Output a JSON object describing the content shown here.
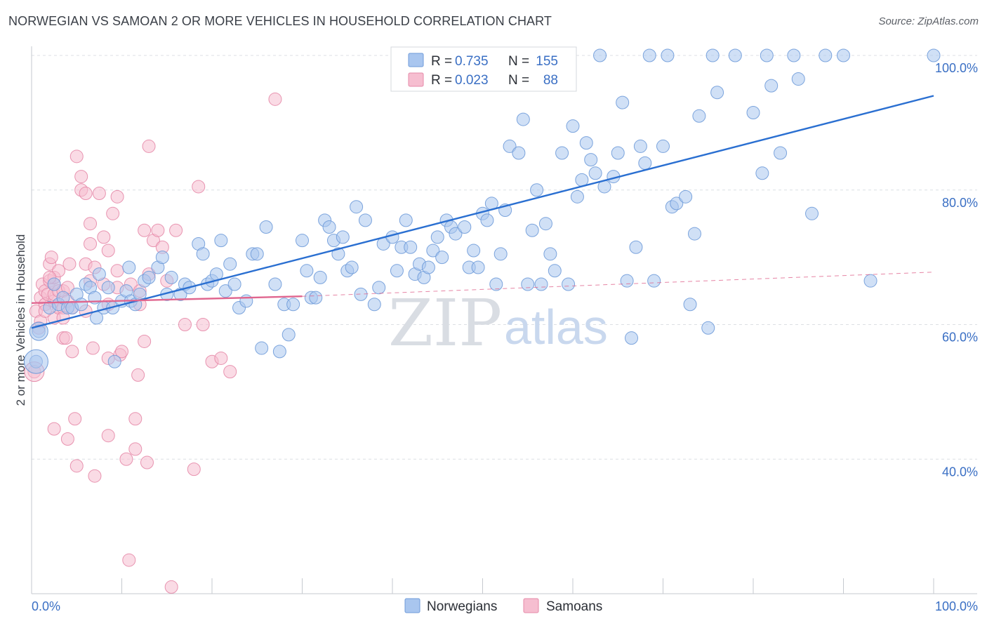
{
  "title": "NORWEGIAN VS SAMOAN 2 OR MORE VEHICLES IN HOUSEHOLD CORRELATION CHART",
  "source": "Source: ZipAtlas.com",
  "watermark": {
    "zip": "ZIP",
    "atlas": "atlas"
  },
  "legend": {
    "r_label": "R =",
    "n_label": "N =",
    "entries": [
      {
        "r": "0.735",
        "n": "155"
      },
      {
        "r": "0.023",
        "n": "88"
      }
    ]
  },
  "colors": {
    "blue_fill": "#a9c6ef",
    "blue_stroke": "#6f9bd9",
    "blue_line": "#2a6fd1",
    "pink_fill": "#f6bed0",
    "pink_stroke": "#e58aa9",
    "pink_line": "#e0668f"
  },
  "chart_data": {
    "type": "scatter",
    "title": "NORWEGIAN VS SAMOAN 2 OR MORE VEHICLES IN HOUSEHOLD CORRELATION CHART",
    "xlabel": "",
    "ylabel": "2 or more Vehicles in Household",
    "xlim": [
      0,
      100
    ],
    "ylim": [
      20,
      100
    ],
    "x_tick_labels": [
      "0.0%",
      "100.0%"
    ],
    "y_ticks": [
      40,
      60,
      80,
      100
    ],
    "y_tick_labels": [
      "40.0%",
      "60.0%",
      "80.0%",
      "100.0%"
    ],
    "grid": true,
    "legend_position": "top-center",
    "series": [
      {
        "name": "Norwegians",
        "r": 0.735,
        "n": 155,
        "trend": [
          [
            0,
            59.5
          ],
          [
            100,
            94.0
          ]
        ],
        "points": [
          [
            0.5,
            54.5
          ],
          [
            0.8,
            59
          ],
          [
            2,
            62.5
          ],
          [
            2.5,
            66
          ],
          [
            3,
            63
          ],
          [
            3.5,
            64
          ],
          [
            4,
            62.5
          ],
          [
            4.5,
            62.5
          ],
          [
            5,
            64.5
          ],
          [
            5.5,
            63
          ],
          [
            6,
            66
          ],
          [
            6.5,
            65.5
          ],
          [
            7,
            64
          ],
          [
            7.2,
            61
          ],
          [
            7.5,
            67.5
          ],
          [
            8,
            62.5
          ],
          [
            8.5,
            65.5
          ],
          [
            9,
            62.5
          ],
          [
            9.2,
            54.5
          ],
          [
            10,
            63.5
          ],
          [
            10.5,
            65
          ],
          [
            10.8,
            68.5
          ],
          [
            11,
            63.5
          ],
          [
            11.5,
            63
          ],
          [
            12,
            64.5
          ],
          [
            12.5,
            66.5
          ],
          [
            13,
            67
          ],
          [
            14,
            68.5
          ],
          [
            14.5,
            70
          ],
          [
            15,
            64.5
          ],
          [
            15.5,
            67
          ],
          [
            16.5,
            64.5
          ],
          [
            17,
            66
          ],
          [
            17.5,
            65.5
          ],
          [
            18.5,
            72
          ],
          [
            19,
            70.5
          ],
          [
            19.5,
            66
          ],
          [
            20,
            66.5
          ],
          [
            20.5,
            67.5
          ],
          [
            21,
            72.5
          ],
          [
            21.5,
            65
          ],
          [
            22,
            69
          ],
          [
            22.5,
            66
          ],
          [
            23,
            62.5
          ],
          [
            23.8,
            63.5
          ],
          [
            24.5,
            70.5
          ],
          [
            25,
            70.5
          ],
          [
            25.5,
            56.5
          ],
          [
            26,
            74.5
          ],
          [
            27,
            66
          ],
          [
            27.5,
            56
          ],
          [
            28,
            63
          ],
          [
            28.5,
            58.5
          ],
          [
            29,
            63
          ],
          [
            30,
            72.5
          ],
          [
            30.5,
            68
          ],
          [
            31,
            64
          ],
          [
            31.5,
            64
          ],
          [
            32,
            67
          ],
          [
            32.5,
            75.5
          ],
          [
            33,
            74.5
          ],
          [
            33.5,
            72.5
          ],
          [
            34,
            70.5
          ],
          [
            34.5,
            73
          ],
          [
            35,
            68
          ],
          [
            35.5,
            68.5
          ],
          [
            36,
            77.5
          ],
          [
            36.5,
            64.5
          ],
          [
            37,
            75.5
          ],
          [
            38,
            63
          ],
          [
            38.5,
            65.5
          ],
          [
            39,
            72
          ],
          [
            40,
            73
          ],
          [
            40.5,
            68
          ],
          [
            41,
            71.5
          ],
          [
            41.5,
            75.5
          ],
          [
            42,
            71.5
          ],
          [
            42.5,
            67.5
          ],
          [
            43,
            69
          ],
          [
            43.5,
            67
          ],
          [
            44,
            68.5
          ],
          [
            44.5,
            71
          ],
          [
            45,
            73
          ],
          [
            45.5,
            70
          ],
          [
            46,
            75.5
          ],
          [
            46.5,
            74.5
          ],
          [
            47,
            73.5
          ],
          [
            48,
            74.5
          ],
          [
            48.5,
            68.5
          ],
          [
            49,
            71
          ],
          [
            49.5,
            68.5
          ],
          [
            50,
            76.5
          ],
          [
            50.5,
            75.5
          ],
          [
            51,
            78
          ],
          [
            51.5,
            66
          ],
          [
            52,
            70.5
          ],
          [
            52.5,
            77
          ],
          [
            53,
            86.5
          ],
          [
            54,
            85.5
          ],
          [
            54.5,
            90.5
          ],
          [
            55,
            66
          ],
          [
            55.5,
            74
          ],
          [
            56,
            80
          ],
          [
            56.5,
            66
          ],
          [
            57,
            75
          ],
          [
            57.5,
            70.5
          ],
          [
            58,
            68
          ],
          [
            58.8,
            85.5
          ],
          [
            59.5,
            66
          ],
          [
            60,
            89.5
          ],
          [
            60.5,
            79
          ],
          [
            61,
            81.5
          ],
          [
            61.5,
            87
          ],
          [
            62,
            84.5
          ],
          [
            62.5,
            82.5
          ],
          [
            63,
            100
          ],
          [
            63.5,
            80.5
          ],
          [
            64.5,
            82
          ],
          [
            65,
            85.5
          ],
          [
            65.5,
            93
          ],
          [
            66,
            66.5
          ],
          [
            66.5,
            58
          ],
          [
            67,
            71.5
          ],
          [
            67.5,
            86.5
          ],
          [
            68,
            84
          ],
          [
            68.5,
            100
          ],
          [
            69,
            66.5
          ],
          [
            70,
            86.5
          ],
          [
            70.5,
            100
          ],
          [
            71,
            77.5
          ],
          [
            71.5,
            78
          ],
          [
            72.5,
            79
          ],
          [
            73,
            63
          ],
          [
            73.5,
            73.5
          ],
          [
            74,
            91
          ],
          [
            75,
            59.5
          ],
          [
            75.5,
            100
          ],
          [
            76,
            94.5
          ],
          [
            78,
            100
          ],
          [
            80,
            91.5
          ],
          [
            81,
            82.5
          ],
          [
            81.5,
            100
          ],
          [
            82,
            95.5
          ],
          [
            83,
            85.5
          ],
          [
            84.5,
            100
          ],
          [
            85,
            96.5
          ],
          [
            86.5,
            76.5
          ],
          [
            88,
            100
          ],
          [
            90,
            100
          ],
          [
            93,
            66.5
          ],
          [
            100,
            100
          ]
        ]
      },
      {
        "name": "Samoans",
        "r": 0.023,
        "n": 88,
        "trend": [
          [
            0,
            63.2
          ],
          [
            30,
            64.2
          ]
        ],
        "trend_extension": [
          [
            30,
            64.2
          ],
          [
            100,
            67.8
          ]
        ],
        "points": [
          [
            0.3,
            53
          ],
          [
            0.5,
            62
          ],
          [
            0.8,
            59.5
          ],
          [
            1,
            60.5
          ],
          [
            1,
            64
          ],
          [
            1.2,
            66
          ],
          [
            1.5,
            63
          ],
          [
            1.5,
            65
          ],
          [
            1.8,
            64.5
          ],
          [
            2,
            66.5
          ],
          [
            2,
            69
          ],
          [
            2.2,
            70
          ],
          [
            2.5,
            63.5
          ],
          [
            2.5,
            61
          ],
          [
            2.5,
            64.5
          ],
          [
            2.5,
            66
          ],
          [
            2.5,
            67
          ],
          [
            2.5,
            44.5
          ],
          [
            3,
            65
          ],
          [
            3,
            62.5
          ],
          [
            3,
            68
          ],
          [
            3.5,
            65
          ],
          [
            3.5,
            58
          ],
          [
            3.5,
            62.5
          ],
          [
            3.8,
            58
          ],
          [
            4,
            63.5
          ],
          [
            4,
            65.5
          ],
          [
            4.2,
            69
          ],
          [
            4.5,
            62.5
          ],
          [
            4.5,
            56
          ],
          [
            4.8,
            46
          ],
          [
            5,
            85
          ],
          [
            5.5,
            82
          ],
          [
            5.5,
            80
          ],
          [
            6,
            79.5
          ],
          [
            6,
            69
          ],
          [
            6,
            62
          ],
          [
            6.5,
            75
          ],
          [
            6.5,
            72
          ],
          [
            6.5,
            66.5
          ],
          [
            6.8,
            56.5
          ],
          [
            7,
            68.5
          ],
          [
            7.5,
            79.5
          ],
          [
            8,
            73
          ],
          [
            8,
            66
          ],
          [
            8.5,
            71
          ],
          [
            8.5,
            63
          ],
          [
            8.5,
            55
          ],
          [
            9,
            76.5
          ],
          [
            9.5,
            79
          ],
          [
            9.5,
            68
          ],
          [
            9.5,
            65.5
          ],
          [
            9.8,
            55.5
          ],
          [
            10,
            56
          ],
          [
            10.5,
            40
          ],
          [
            10.8,
            25
          ],
          [
            11,
            66
          ],
          [
            11.5,
            41.5
          ],
          [
            11.5,
            46
          ],
          [
            11.8,
            52.5
          ],
          [
            12,
            63
          ],
          [
            12,
            65
          ],
          [
            12.5,
            57.5
          ],
          [
            12.5,
            74
          ],
          [
            12.8,
            39.5
          ],
          [
            13,
            86.5
          ],
          [
            13,
            67.5
          ],
          [
            13.5,
            72.5
          ],
          [
            14,
            74
          ],
          [
            14.5,
            71.5
          ],
          [
            15,
            66.5
          ],
          [
            15.5,
            21
          ],
          [
            16,
            74
          ],
          [
            17,
            60
          ],
          [
            18,
            38.5
          ],
          [
            18.5,
            80.5
          ],
          [
            19,
            60
          ],
          [
            20,
            54.5
          ],
          [
            21,
            55
          ],
          [
            22,
            53
          ],
          [
            27,
            93.5
          ],
          [
            8.5,
            43.5
          ],
          [
            5,
            39
          ],
          [
            7,
            37.5
          ],
          [
            4,
            43
          ],
          [
            1.5,
            62
          ],
          [
            2,
            67
          ],
          [
            3.5,
            61
          ]
        ]
      }
    ]
  }
}
